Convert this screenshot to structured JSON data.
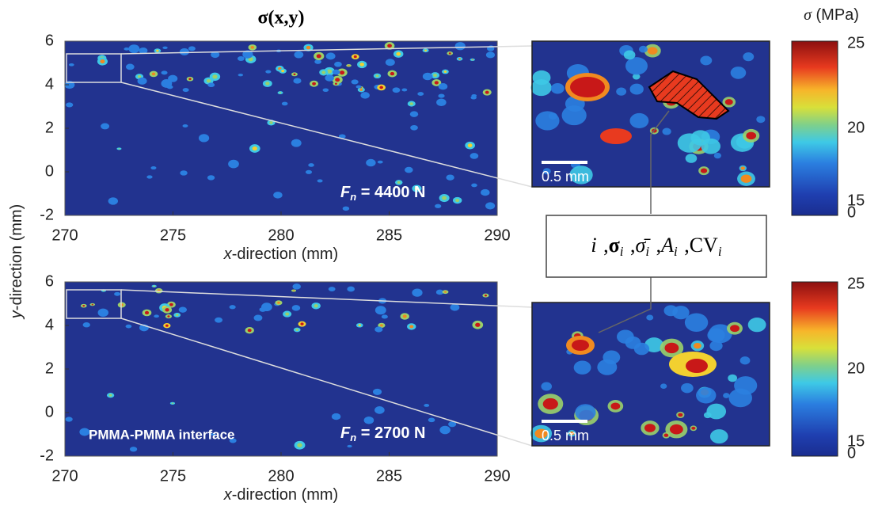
{
  "title": "σ(x,y)",
  "axes": {
    "x_ticks": [
      "270",
      "275",
      "280",
      "285",
      "290"
    ],
    "y_ticks": [
      "6",
      "4",
      "2",
      "0",
      "-2"
    ],
    "x_label": {
      "italic": "x",
      "text": "-direction (mm)"
    },
    "y_label": {
      "italic": "y",
      "text": "-direction (mm)"
    }
  },
  "panels": [
    {
      "force": {
        "symbol": "F",
        "subscript": "n",
        "text": " = 4400 N"
      },
      "scale_bar": "0.5 mm"
    },
    {
      "force": {
        "symbol": "F",
        "subscript": "n",
        "text": " = 2700 N"
      },
      "scale_bar": "0.5 mm",
      "note": "PMMA-PMMA  interface"
    }
  ],
  "colorbar": {
    "symbol": "σ",
    "unit": " (MPa)",
    "ticks": [
      "25",
      "20",
      "15",
      "0"
    ]
  },
  "formula": {
    "separator": " ,",
    "parts": [
      {
        "base": "i"
      },
      {
        "base": "σ",
        "sub": "i"
      },
      {
        "base": "σ̄",
        "sub": "i"
      },
      {
        "base": "A",
        "sub": "i"
      },
      {
        "base": "CV",
        "sub": "i"
      }
    ]
  }
}
